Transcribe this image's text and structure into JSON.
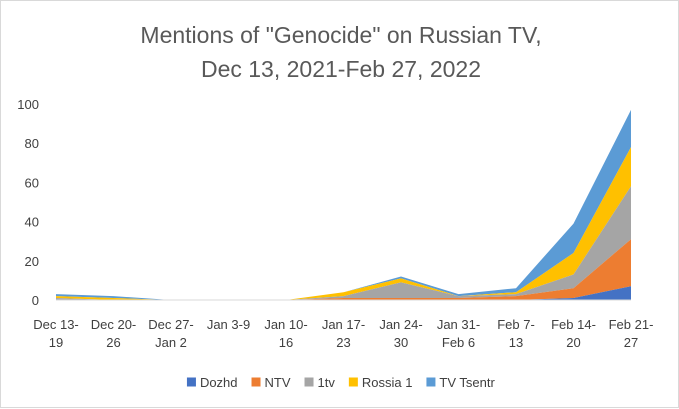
{
  "chart_data": {
    "type": "area",
    "stacked": true,
    "title_lines": [
      "Mentions of \"Genocide\" on Russian TV,",
      "Dec 13, 2021-Feb 27, 2022"
    ],
    "categories": [
      [
        "Dec 13-",
        "19"
      ],
      [
        "Dec 20-",
        "26"
      ],
      [
        "Dec 27-",
        "Jan 2"
      ],
      [
        "Jan 3-9"
      ],
      [
        "Jan 10-",
        "16"
      ],
      [
        "Jan 17-",
        "23"
      ],
      [
        "Jan 24-",
        "30"
      ],
      [
        "Jan 31-",
        "Feb 6"
      ],
      [
        "Feb 7-",
        "13"
      ],
      [
        "Feb 14-",
        "20"
      ],
      [
        "Feb 21-",
        "27"
      ]
    ],
    "yticks": [
      "0",
      "20",
      "40",
      "60",
      "80",
      "100"
    ],
    "ylim": [
      0,
      100
    ],
    "grid": false,
    "legend_position": "bottom",
    "series": [
      {
        "name": "Dozhd",
        "color": "#4472c4",
        "values": [
          0,
          0,
          0,
          0,
          0,
          0,
          0,
          0,
          0,
          1,
          7
        ]
      },
      {
        "name": "NTV",
        "color": "#ed7d31",
        "values": [
          0,
          0,
          0,
          0,
          0,
          1,
          1,
          1,
          2,
          5,
          24
        ]
      },
      {
        "name": "1tv",
        "color": "#a5a5a5",
        "values": [
          1,
          0,
          0,
          0,
          0,
          1,
          8,
          1,
          1,
          7,
          27
        ]
      },
      {
        "name": "Rossia 1",
        "color": "#ffc000",
        "values": [
          1,
          1,
          0,
          0,
          0,
          2,
          2,
          0,
          1,
          11,
          20
        ]
      },
      {
        "name": "TV Tsentr",
        "color": "#5b9bd5",
        "values": [
          1,
          1,
          0,
          0,
          0,
          0,
          1,
          1,
          2,
          15,
          19
        ]
      }
    ]
  }
}
